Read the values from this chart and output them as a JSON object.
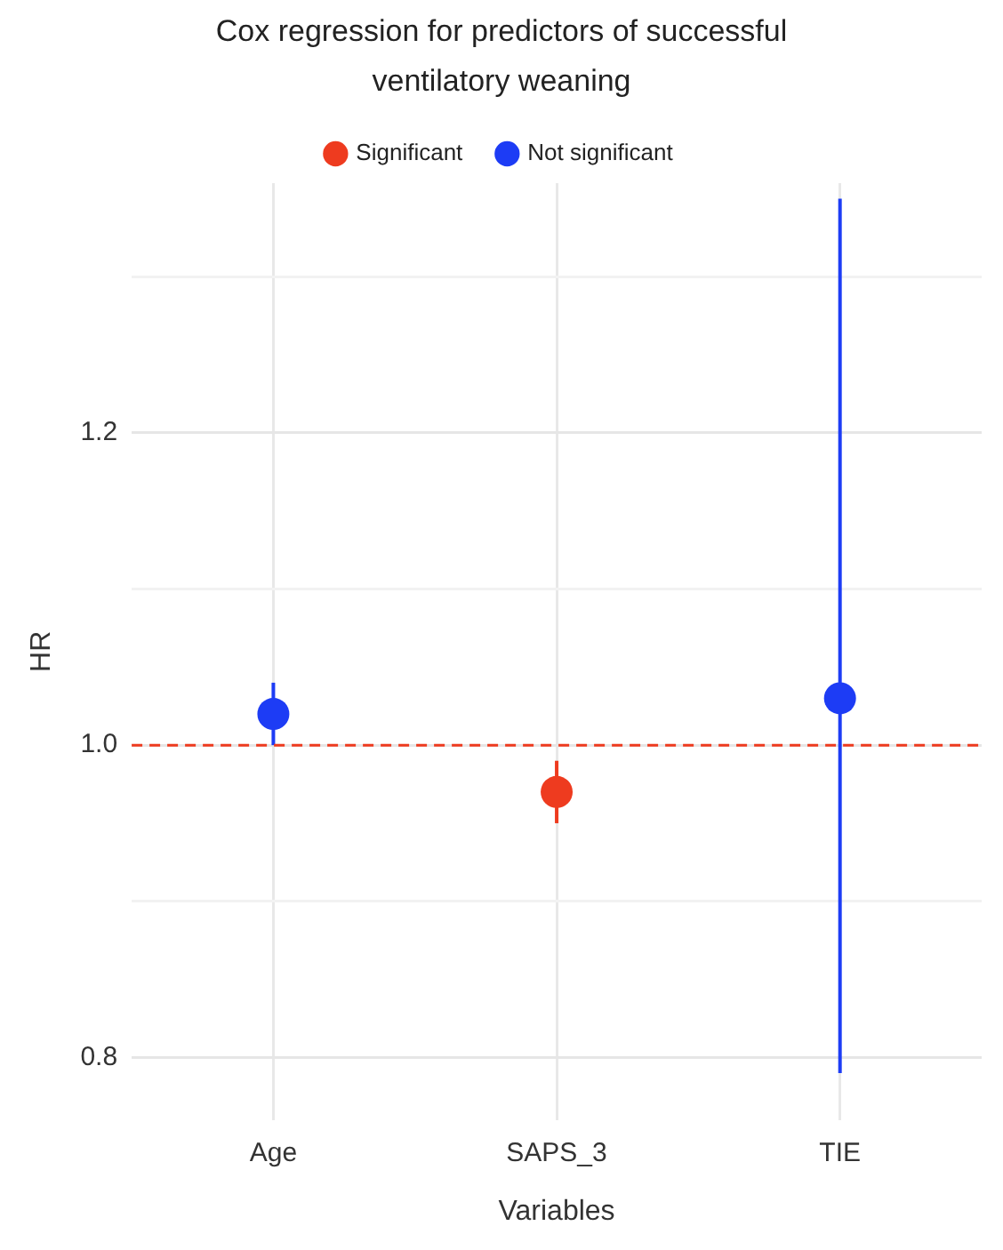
{
  "chart_data": {
    "type": "scatter",
    "title": "Cox regression for predictors of successful ventilatory weaning",
    "xlabel": "Variables",
    "ylabel": "HR",
    "categories": [
      "Age",
      "SAPS_3",
      "TIE"
    ],
    "series": [
      {
        "name": "Significant",
        "color": "#ee3b1f",
        "values": [
          null,
          0.97,
          null
        ],
        "errors": [
          null,
          [
            0.95,
            0.99
          ],
          null
        ]
      },
      {
        "name": "Not significant",
        "color": "#1d3cf5",
        "values": [
          1.02,
          null,
          1.03
        ],
        "errors": [
          [
            1.0,
            1.04
          ],
          null,
          [
            0.79,
            1.35
          ]
        ]
      }
    ],
    "ylim": [
      0.76,
      1.36
    ],
    "yticks": [
      {
        "value": 0.8,
        "label": "0.8"
      },
      {
        "value": 0.9,
        "label": null
      },
      {
        "value": 1.0,
        "label": "1.0"
      },
      {
        "value": 1.1,
        "label": null
      },
      {
        "value": 1.2,
        "label": "1.2"
      },
      {
        "value": 1.3,
        "label": null
      }
    ],
    "grid": true,
    "legend": "top",
    "marker": "circle",
    "ref_lines": [
      {
        "axis": "y",
        "value": 1.0,
        "color": "#ee3b1f",
        "line_style": "dashed"
      }
    ]
  }
}
